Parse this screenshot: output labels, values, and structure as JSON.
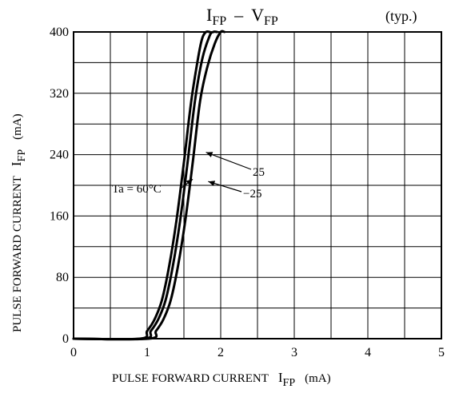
{
  "chart_data": {
    "type": "line",
    "title": {
      "main": "I",
      "main_sub": "FP",
      "sep": "–",
      "second": "V",
      "second_sub": "FP",
      "note": "(typ.)"
    },
    "xlabel": {
      "text": "PULSE FORWARD CURRENT",
      "sym": "I",
      "sym_sub": "FP",
      "unit": "(mA)"
    },
    "ylabel": {
      "text": "PULSE FORWARD CURRENT",
      "sym": "I",
      "sym_sub": "FP",
      "unit": "(mA)"
    },
    "xlim": [
      0,
      5
    ],
    "ylim": [
      0,
      400
    ],
    "x_ticks": [
      0,
      1,
      2,
      3,
      4,
      5
    ],
    "x_tick_labels": [
      "0",
      "1",
      "2",
      "3",
      "4",
      "5"
    ],
    "y_ticks": [
      0,
      80,
      160,
      240,
      320,
      400
    ],
    "y_tick_labels": [
      "0",
      "80",
      "160",
      "240",
      "320",
      "400"
    ],
    "x_grid_step": 0.5,
    "y_grid_step": 40,
    "grid": true,
    "series": [
      {
        "name": "60",
        "x": [
          0,
          0.9,
          1.0,
          1.1,
          1.2,
          1.3,
          1.4,
          1.5,
          1.6,
          1.7,
          1.75,
          1.8,
          1.85
        ],
        "y": [
          0,
          0,
          10,
          25,
          50,
          95,
          155,
          230,
          310,
          370,
          392,
          400,
          400
        ]
      },
      {
        "name": "25",
        "x": [
          0,
          0.95,
          1.05,
          1.15,
          1.25,
          1.35,
          1.45,
          1.55,
          1.65,
          1.75,
          1.85,
          1.9,
          1.95
        ],
        "y": [
          0,
          0,
          10,
          25,
          50,
          95,
          155,
          230,
          310,
          365,
          395,
          400,
          400
        ]
      },
      {
        "name": "−25",
        "x": [
          0,
          1.02,
          1.12,
          1.22,
          1.32,
          1.42,
          1.52,
          1.62,
          1.72,
          1.82,
          1.92,
          2.0,
          2.05
        ],
        "y": [
          0,
          0,
          10,
          25,
          50,
          95,
          155,
          230,
          310,
          355,
          385,
          400,
          400
        ]
      }
    ],
    "annotations": [
      {
        "text": "Ta = 60°C",
        "series": "60",
        "at": [
          1.62,
          208
        ]
      },
      {
        "text": "25",
        "series": "25",
        "at": [
          1.8,
          243
        ]
      },
      {
        "text": "−25",
        "series": "−25",
        "at": [
          1.83,
          205
        ]
      }
    ]
  }
}
